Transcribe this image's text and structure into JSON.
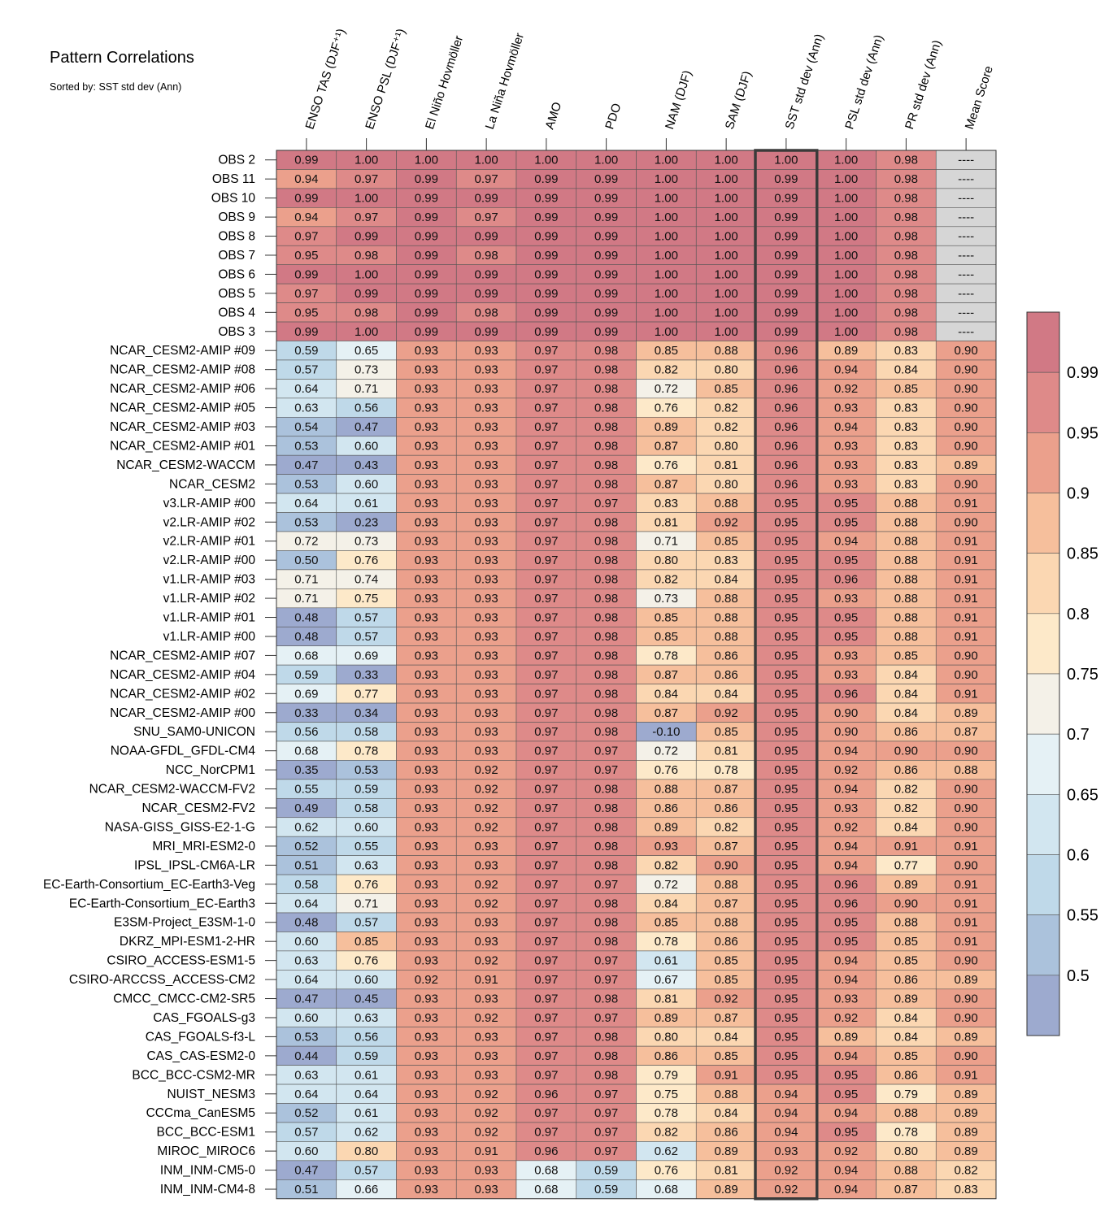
{
  "chart_data": {
    "type": "heatmap",
    "title": "Pattern Correlations",
    "subtitle": "Sorted by: SST std dev (Ann)",
    "columns": [
      "ENSO TAS (DJF⁺¹)",
      "ENSO PSL (DJF⁺¹)",
      "El Niño Hovmöller",
      "La Niña Hovmöller",
      "AMO",
      "PDO",
      "NAM (DJF)",
      "SAM (DJF)",
      "SST std dev (Ann)",
      "PSL std dev (Ann)",
      "PR std dev (Ann)",
      "Mean Score"
    ],
    "highlighted_column": "SST std dev (Ann)",
    "missing_label": "----",
    "rows": [
      {
        "name": "OBS 2",
        "values": [
          "0.99",
          "1.00",
          "1.00",
          "1.00",
          "1.00",
          "1.00",
          "1.00",
          "1.00",
          "1.00",
          "1.00",
          "0.98",
          "----"
        ]
      },
      {
        "name": "OBS 11",
        "values": [
          "0.94",
          "0.97",
          "0.99",
          "0.97",
          "0.99",
          "0.99",
          "1.00",
          "1.00",
          "0.99",
          "1.00",
          "0.98",
          "----"
        ]
      },
      {
        "name": "OBS 10",
        "values": [
          "0.99",
          "1.00",
          "0.99",
          "0.99",
          "0.99",
          "0.99",
          "1.00",
          "1.00",
          "0.99",
          "1.00",
          "0.98",
          "----"
        ]
      },
      {
        "name": "OBS 9",
        "values": [
          "0.94",
          "0.97",
          "0.99",
          "0.97",
          "0.99",
          "0.99",
          "1.00",
          "1.00",
          "0.99",
          "1.00",
          "0.98",
          "----"
        ]
      },
      {
        "name": "OBS 8",
        "values": [
          "0.97",
          "0.99",
          "0.99",
          "0.99",
          "0.99",
          "0.99",
          "1.00",
          "1.00",
          "0.99",
          "1.00",
          "0.98",
          "----"
        ]
      },
      {
        "name": "OBS 7",
        "values": [
          "0.95",
          "0.98",
          "0.99",
          "0.98",
          "0.99",
          "0.99",
          "1.00",
          "1.00",
          "0.99",
          "1.00",
          "0.98",
          "----"
        ]
      },
      {
        "name": "OBS 6",
        "values": [
          "0.99",
          "1.00",
          "0.99",
          "0.99",
          "0.99",
          "0.99",
          "1.00",
          "1.00",
          "0.99",
          "1.00",
          "0.98",
          "----"
        ]
      },
      {
        "name": "OBS 5",
        "values": [
          "0.97",
          "0.99",
          "0.99",
          "0.99",
          "0.99",
          "0.99",
          "1.00",
          "1.00",
          "0.99",
          "1.00",
          "0.98",
          "----"
        ]
      },
      {
        "name": "OBS 4",
        "values": [
          "0.95",
          "0.98",
          "0.99",
          "0.98",
          "0.99",
          "0.99",
          "1.00",
          "1.00",
          "0.99",
          "1.00",
          "0.98",
          "----"
        ]
      },
      {
        "name": "OBS 3",
        "values": [
          "0.99",
          "1.00",
          "0.99",
          "0.99",
          "0.99",
          "0.99",
          "1.00",
          "1.00",
          "0.99",
          "1.00",
          "0.98",
          "----"
        ]
      },
      {
        "name": "NCAR_CESM2-AMIP  #09",
        "values": [
          "0.59",
          "0.65",
          "0.93",
          "0.93",
          "0.97",
          "0.98",
          "0.85",
          "0.88",
          "0.96",
          "0.89",
          "0.83",
          "0.90"
        ]
      },
      {
        "name": "NCAR_CESM2-AMIP  #08",
        "values": [
          "0.57",
          "0.73",
          "0.93",
          "0.93",
          "0.97",
          "0.98",
          "0.82",
          "0.80",
          "0.96",
          "0.94",
          "0.84",
          "0.90"
        ]
      },
      {
        "name": "NCAR_CESM2-AMIP  #06",
        "values": [
          "0.64",
          "0.71",
          "0.93",
          "0.93",
          "0.97",
          "0.98",
          "0.72",
          "0.85",
          "0.96",
          "0.92",
          "0.85",
          "0.90"
        ]
      },
      {
        "name": "NCAR_CESM2-AMIP  #05",
        "values": [
          "0.63",
          "0.56",
          "0.93",
          "0.93",
          "0.97",
          "0.98",
          "0.76",
          "0.82",
          "0.96",
          "0.93",
          "0.83",
          "0.90"
        ]
      },
      {
        "name": "NCAR_CESM2-AMIP  #03",
        "values": [
          "0.54",
          "0.47",
          "0.93",
          "0.93",
          "0.97",
          "0.98",
          "0.89",
          "0.82",
          "0.96",
          "0.94",
          "0.83",
          "0.90"
        ]
      },
      {
        "name": "NCAR_CESM2-AMIP  #01",
        "values": [
          "0.53",
          "0.60",
          "0.93",
          "0.93",
          "0.97",
          "0.98",
          "0.87",
          "0.80",
          "0.96",
          "0.93",
          "0.83",
          "0.90"
        ]
      },
      {
        "name": "NCAR_CESM2-WACCM",
        "values": [
          "0.47",
          "0.43",
          "0.93",
          "0.93",
          "0.97",
          "0.98",
          "0.76",
          "0.81",
          "0.96",
          "0.93",
          "0.83",
          "0.89"
        ]
      },
      {
        "name": "NCAR_CESM2",
        "values": [
          "0.53",
          "0.60",
          "0.93",
          "0.93",
          "0.97",
          "0.98",
          "0.87",
          "0.80",
          "0.96",
          "0.93",
          "0.83",
          "0.90"
        ]
      },
      {
        "name": "v3.LR-AMIP  #00",
        "values": [
          "0.64",
          "0.61",
          "0.93",
          "0.93",
          "0.97",
          "0.97",
          "0.83",
          "0.88",
          "0.95",
          "0.95",
          "0.88",
          "0.91"
        ]
      },
      {
        "name": "v2.LR-AMIP  #02",
        "values": [
          "0.53",
          "0.23",
          "0.93",
          "0.93",
          "0.97",
          "0.98",
          "0.81",
          "0.92",
          "0.95",
          "0.95",
          "0.88",
          "0.90"
        ]
      },
      {
        "name": "v2.LR-AMIP  #01",
        "values": [
          "0.72",
          "0.73",
          "0.93",
          "0.93",
          "0.97",
          "0.98",
          "0.71",
          "0.85",
          "0.95",
          "0.94",
          "0.88",
          "0.91"
        ]
      },
      {
        "name": "v2.LR-AMIP  #00",
        "values": [
          "0.50",
          "0.76",
          "0.93",
          "0.93",
          "0.97",
          "0.98",
          "0.80",
          "0.83",
          "0.95",
          "0.95",
          "0.88",
          "0.91"
        ]
      },
      {
        "name": "v1.LR-AMIP  #03",
        "values": [
          "0.71",
          "0.74",
          "0.93",
          "0.93",
          "0.97",
          "0.98",
          "0.82",
          "0.84",
          "0.95",
          "0.96",
          "0.88",
          "0.91"
        ]
      },
      {
        "name": "v1.LR-AMIP  #02",
        "values": [
          "0.71",
          "0.75",
          "0.93",
          "0.93",
          "0.97",
          "0.98",
          "0.73",
          "0.88",
          "0.95",
          "0.93",
          "0.88",
          "0.91"
        ]
      },
      {
        "name": "v1.LR-AMIP  #01",
        "values": [
          "0.48",
          "0.57",
          "0.93",
          "0.93",
          "0.97",
          "0.98",
          "0.85",
          "0.88",
          "0.95",
          "0.95",
          "0.88",
          "0.91"
        ]
      },
      {
        "name": "v1.LR-AMIP  #00",
        "values": [
          "0.48",
          "0.57",
          "0.93",
          "0.93",
          "0.97",
          "0.98",
          "0.85",
          "0.88",
          "0.95",
          "0.95",
          "0.88",
          "0.91"
        ]
      },
      {
        "name": "NCAR_CESM2-AMIP  #07",
        "values": [
          "0.68",
          "0.69",
          "0.93",
          "0.93",
          "0.97",
          "0.98",
          "0.78",
          "0.86",
          "0.95",
          "0.93",
          "0.85",
          "0.90"
        ]
      },
      {
        "name": "NCAR_CESM2-AMIP  #04",
        "values": [
          "0.59",
          "0.33",
          "0.93",
          "0.93",
          "0.97",
          "0.98",
          "0.87",
          "0.86",
          "0.95",
          "0.93",
          "0.84",
          "0.90"
        ]
      },
      {
        "name": "NCAR_CESM2-AMIP  #02",
        "values": [
          "0.69",
          "0.77",
          "0.93",
          "0.93",
          "0.97",
          "0.98",
          "0.84",
          "0.84",
          "0.95",
          "0.96",
          "0.84",
          "0.91"
        ]
      },
      {
        "name": "NCAR_CESM2-AMIP  #00",
        "values": [
          "0.33",
          "0.34",
          "0.93",
          "0.93",
          "0.97",
          "0.98",
          "0.87",
          "0.92",
          "0.95",
          "0.90",
          "0.84",
          "0.89"
        ]
      },
      {
        "name": "SNU_SAM0-UNICON",
        "values": [
          "0.56",
          "0.58",
          "0.93",
          "0.93",
          "0.97",
          "0.98",
          "-0.10",
          "0.85",
          "0.95",
          "0.90",
          "0.86",
          "0.87"
        ]
      },
      {
        "name": "NOAA-GFDL_GFDL-CM4",
        "values": [
          "0.68",
          "0.78",
          "0.93",
          "0.93",
          "0.97",
          "0.97",
          "0.72",
          "0.81",
          "0.95",
          "0.94",
          "0.90",
          "0.90"
        ]
      },
      {
        "name": "NCC_NorCPM1",
        "values": [
          "0.35",
          "0.53",
          "0.93",
          "0.92",
          "0.97",
          "0.97",
          "0.76",
          "0.78",
          "0.95",
          "0.92",
          "0.86",
          "0.88"
        ]
      },
      {
        "name": "NCAR_CESM2-WACCM-FV2",
        "values": [
          "0.55",
          "0.59",
          "0.93",
          "0.92",
          "0.97",
          "0.98",
          "0.88",
          "0.87",
          "0.95",
          "0.94",
          "0.82",
          "0.90"
        ]
      },
      {
        "name": "NCAR_CESM2-FV2",
        "values": [
          "0.49",
          "0.58",
          "0.93",
          "0.92",
          "0.97",
          "0.98",
          "0.86",
          "0.86",
          "0.95",
          "0.93",
          "0.82",
          "0.90"
        ]
      },
      {
        "name": "NASA-GISS_GISS-E2-1-G",
        "values": [
          "0.62",
          "0.60",
          "0.93",
          "0.92",
          "0.97",
          "0.98",
          "0.89",
          "0.82",
          "0.95",
          "0.92",
          "0.84",
          "0.90"
        ]
      },
      {
        "name": "MRI_MRI-ESM2-0",
        "values": [
          "0.52",
          "0.55",
          "0.93",
          "0.93",
          "0.97",
          "0.98",
          "0.93",
          "0.87",
          "0.95",
          "0.94",
          "0.91",
          "0.91"
        ]
      },
      {
        "name": "IPSL_IPSL-CM6A-LR",
        "values": [
          "0.51",
          "0.63",
          "0.93",
          "0.93",
          "0.97",
          "0.98",
          "0.82",
          "0.90",
          "0.95",
          "0.94",
          "0.77",
          "0.90"
        ]
      },
      {
        "name": "EC-Earth-Consortium_EC-Earth3-Veg",
        "values": [
          "0.58",
          "0.76",
          "0.93",
          "0.92",
          "0.97",
          "0.97",
          "0.72",
          "0.88",
          "0.95",
          "0.96",
          "0.89",
          "0.91"
        ]
      },
      {
        "name": "EC-Earth-Consortium_EC-Earth3",
        "values": [
          "0.64",
          "0.71",
          "0.93",
          "0.92",
          "0.97",
          "0.98",
          "0.84",
          "0.87",
          "0.95",
          "0.96",
          "0.90",
          "0.91"
        ]
      },
      {
        "name": "E3SM-Project_E3SM-1-0",
        "values": [
          "0.48",
          "0.57",
          "0.93",
          "0.93",
          "0.97",
          "0.98",
          "0.85",
          "0.88",
          "0.95",
          "0.95",
          "0.88",
          "0.91"
        ]
      },
      {
        "name": "DKRZ_MPI-ESM1-2-HR",
        "values": [
          "0.60",
          "0.85",
          "0.93",
          "0.93",
          "0.97",
          "0.98",
          "0.78",
          "0.86",
          "0.95",
          "0.95",
          "0.85",
          "0.91"
        ]
      },
      {
        "name": "CSIRO_ACCESS-ESM1-5",
        "values": [
          "0.63",
          "0.76",
          "0.93",
          "0.92",
          "0.97",
          "0.97",
          "0.61",
          "0.85",
          "0.95",
          "0.94",
          "0.85",
          "0.90"
        ]
      },
      {
        "name": "CSIRO-ARCCSS_ACCESS-CM2",
        "values": [
          "0.64",
          "0.60",
          "0.92",
          "0.91",
          "0.97",
          "0.97",
          "0.67",
          "0.85",
          "0.95",
          "0.94",
          "0.86",
          "0.89"
        ]
      },
      {
        "name": "CMCC_CMCC-CM2-SR5",
        "values": [
          "0.47",
          "0.45",
          "0.93",
          "0.93",
          "0.97",
          "0.98",
          "0.81",
          "0.92",
          "0.95",
          "0.93",
          "0.89",
          "0.90"
        ]
      },
      {
        "name": "CAS_FGOALS-g3",
        "values": [
          "0.60",
          "0.63",
          "0.93",
          "0.92",
          "0.97",
          "0.97",
          "0.89",
          "0.87",
          "0.95",
          "0.92",
          "0.84",
          "0.90"
        ]
      },
      {
        "name": "CAS_FGOALS-f3-L",
        "values": [
          "0.53",
          "0.56",
          "0.93",
          "0.93",
          "0.97",
          "0.98",
          "0.80",
          "0.84",
          "0.95",
          "0.89",
          "0.84",
          "0.89"
        ]
      },
      {
        "name": "CAS_CAS-ESM2-0",
        "values": [
          "0.44",
          "0.59",
          "0.93",
          "0.93",
          "0.97",
          "0.98",
          "0.86",
          "0.85",
          "0.95",
          "0.94",
          "0.85",
          "0.90"
        ]
      },
      {
        "name": "BCC_BCC-CSM2-MR",
        "values": [
          "0.63",
          "0.61",
          "0.93",
          "0.93",
          "0.97",
          "0.98",
          "0.79",
          "0.91",
          "0.95",
          "0.95",
          "0.86",
          "0.91"
        ]
      },
      {
        "name": "NUIST_NESM3",
        "values": [
          "0.64",
          "0.64",
          "0.93",
          "0.92",
          "0.96",
          "0.97",
          "0.75",
          "0.88",
          "0.94",
          "0.95",
          "0.79",
          "0.89"
        ]
      },
      {
        "name": "CCCma_CanESM5",
        "values": [
          "0.52",
          "0.61",
          "0.93",
          "0.92",
          "0.97",
          "0.97",
          "0.78",
          "0.84",
          "0.94",
          "0.94",
          "0.88",
          "0.89"
        ]
      },
      {
        "name": "BCC_BCC-ESM1",
        "values": [
          "0.57",
          "0.62",
          "0.93",
          "0.92",
          "0.97",
          "0.97",
          "0.82",
          "0.86",
          "0.94",
          "0.95",
          "0.78",
          "0.89"
        ]
      },
      {
        "name": "MIROC_MIROC6",
        "values": [
          "0.60",
          "0.80",
          "0.93",
          "0.91",
          "0.96",
          "0.97",
          "0.62",
          "0.89",
          "0.93",
          "0.92",
          "0.80",
          "0.89"
        ]
      },
      {
        "name": "INM_INM-CM5-0",
        "values": [
          "0.47",
          "0.57",
          "0.93",
          "0.93",
          "0.68",
          "0.59",
          "0.76",
          "0.81",
          "0.92",
          "0.94",
          "0.88",
          "0.82"
        ]
      },
      {
        "name": "INM_INM-CM4-8",
        "values": [
          "0.51",
          "0.66",
          "0.93",
          "0.93",
          "0.68",
          "0.59",
          "0.68",
          "0.89",
          "0.92",
          "0.94",
          "0.87",
          "0.83"
        ]
      }
    ],
    "colorbar": {
      "levels": [
        0.5,
        0.55,
        0.6,
        0.65,
        0.7,
        0.75,
        0.8,
        0.85,
        0.9,
        0.95,
        0.99
      ],
      "tick_labels": [
        "0.5",
        "0.55",
        "0.6",
        "0.65",
        "0.7",
        "0.75",
        "0.8",
        "0.85",
        "0.9",
        "0.95",
        "0.99"
      ],
      "colors": [
        "#9daacf",
        "#abc2dc",
        "#bfd9e9",
        "#d2e6f0",
        "#e5f1f5",
        "#f4f1e8",
        "#fde9c9",
        "#fbd7b2",
        "#f6bf9c",
        "#eba08c",
        "#de8a89",
        "#d17985"
      ],
      "missing_color": "#d6d6d6",
      "placement": "right"
    }
  }
}
